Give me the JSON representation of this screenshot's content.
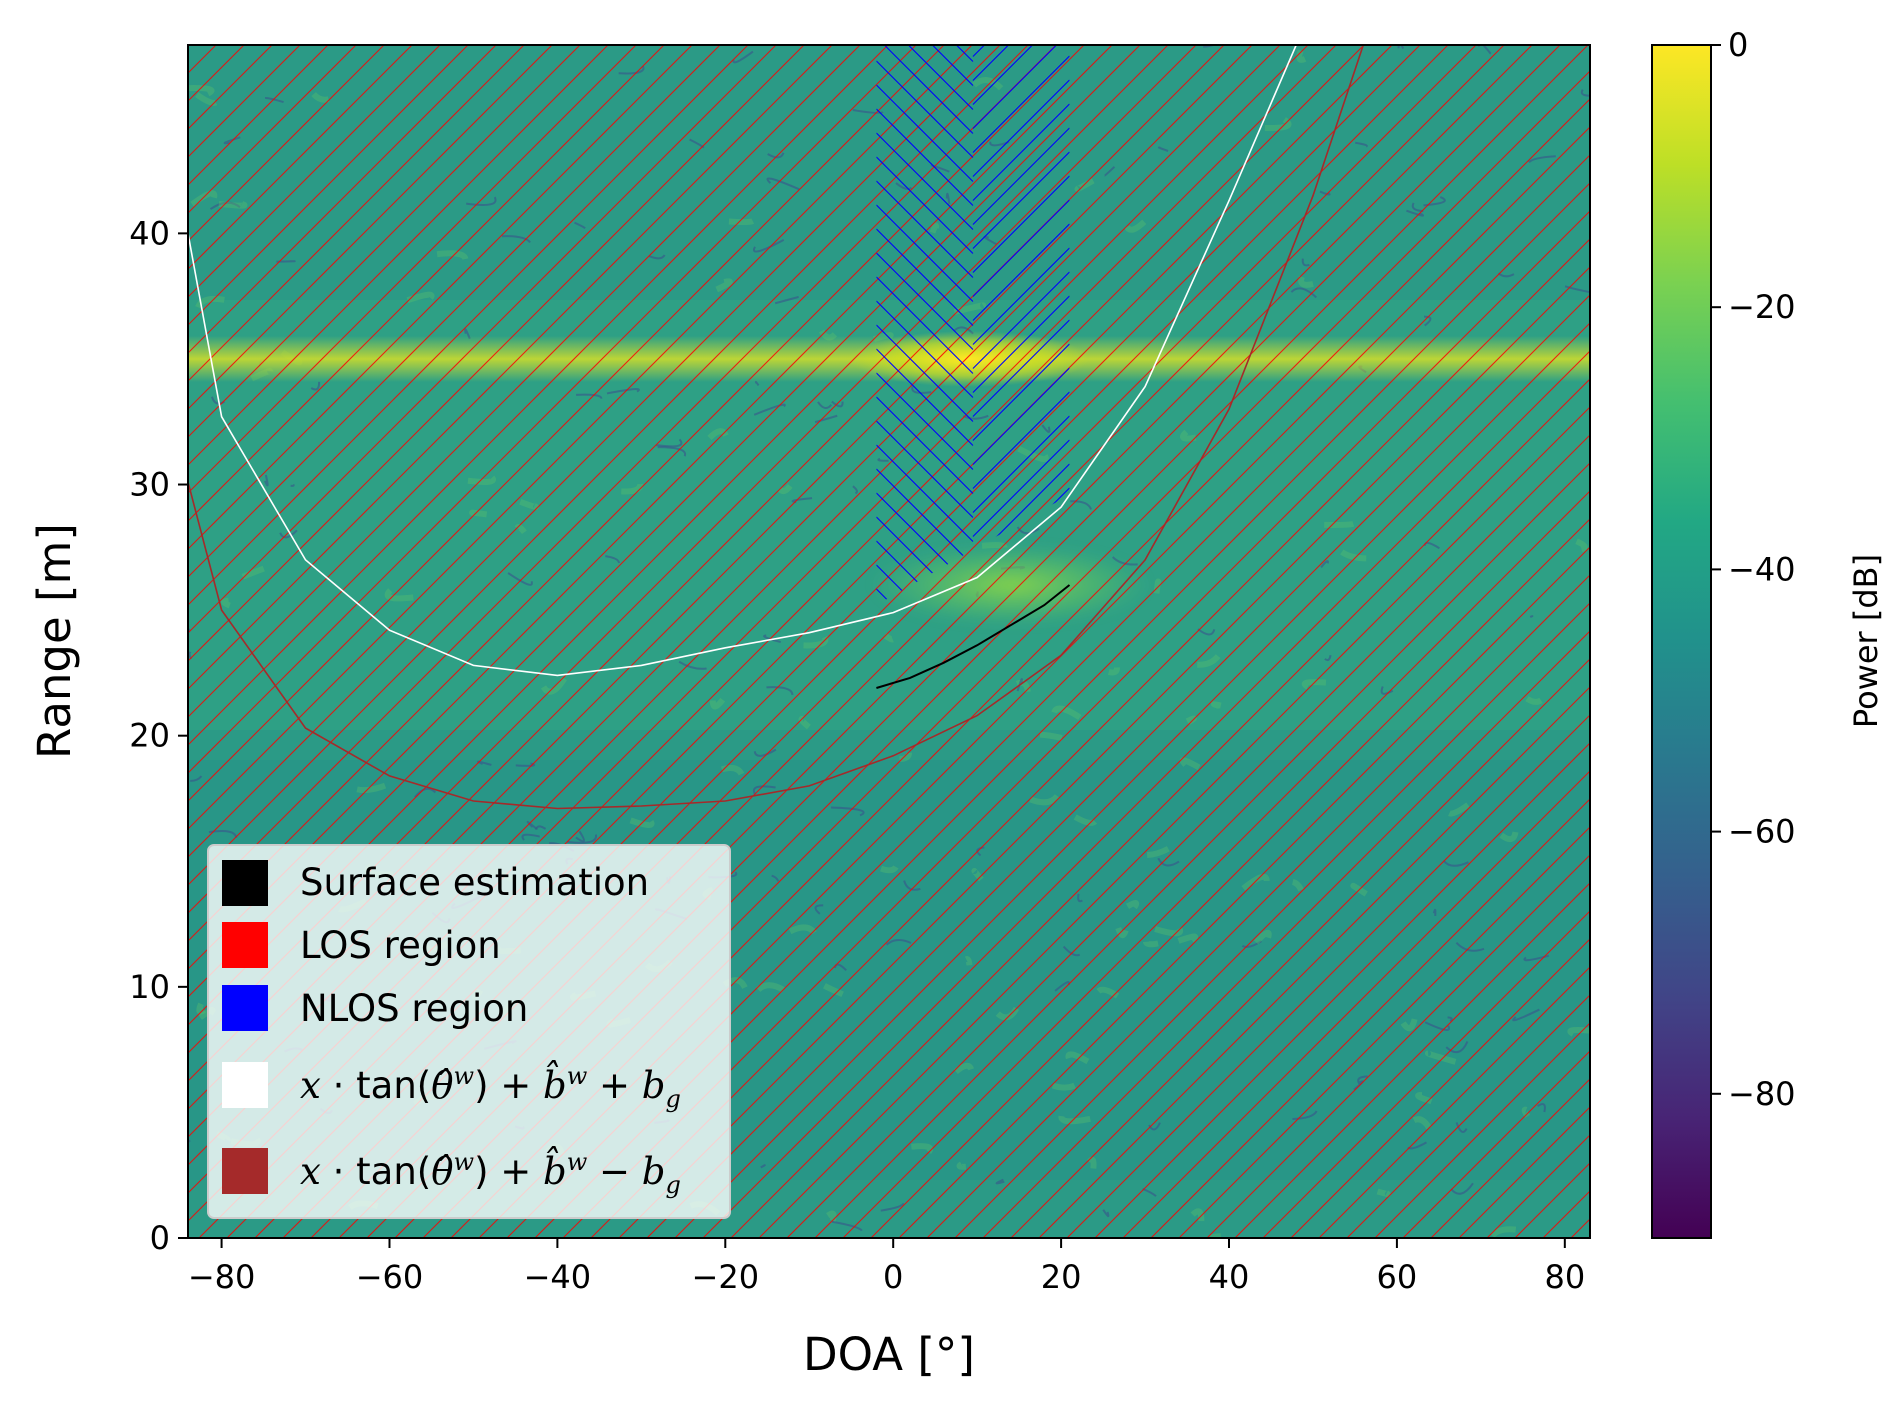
{
  "chart_data": {
    "type": "heatmap",
    "xlabel": "DOA [°]",
    "ylabel": "Range [m]",
    "xlim": [
      -84,
      83
    ],
    "ylim": [
      0,
      47.5
    ],
    "xticks": [
      -80,
      -60,
      -40,
      -20,
      0,
      20,
      40,
      60,
      80
    ],
    "xtick_labels": [
      "−80",
      "−60",
      "−40",
      "−20",
      "0",
      "20",
      "40",
      "60",
      "80"
    ],
    "yticks": [
      0,
      10,
      20,
      30,
      40
    ],
    "ytick_labels": [
      "0",
      "10",
      "20",
      "30",
      "40"
    ],
    "colorbar": {
      "label": "Power [dB]",
      "range": [
        -91,
        0
      ],
      "colormap": "viridis",
      "ticks": [
        0,
        -20,
        -40,
        -60,
        -80
      ],
      "tick_labels": [
        "0",
        "−20",
        "−40",
        "−60",
        "−80"
      ]
    },
    "legend": {
      "placement": "lower-left",
      "entries": [
        {
          "key": "surface",
          "label": "Surface estimation",
          "color": "#000000"
        },
        {
          "key": "los",
          "label": "LOS region",
          "color": "#ff0000"
        },
        {
          "key": "nlos",
          "label": "NLOS region",
          "color": "#0000ff"
        },
        {
          "key": "upper",
          "label": "x·tan(θ̂ʷ) + b̂ʷ + b_g",
          "color": "#ffffff"
        },
        {
          "key": "lower",
          "label": "x·tan(θ̂ʷ) + b̂ʷ − b_g",
          "color": "#a52a2a"
        }
      ]
    },
    "regions": {
      "nlos_doa_range": [
        -2,
        21
      ],
      "los": "all DOA outside the NLOS band",
      "nlos_min_range_at_doa": [
        [
          -2,
          25.2
        ],
        [
          21,
          29.6
        ]
      ]
    },
    "power_features": [
      {
        "description": "strong horizontal return",
        "range_m": 35,
        "peak_doa": 9,
        "peak_db": -2
      },
      {
        "description": "secondary return",
        "range_m": 26,
        "doa_span": [
          -2,
          30
        ],
        "peak_db": -22
      }
    ],
    "series": [
      {
        "key": "surface",
        "x": [
          -2,
          2,
          6,
          10,
          14,
          18,
          21
        ],
        "y": [
          21.9,
          22.3,
          22.9,
          23.6,
          24.4,
          25.2,
          26.0
        ]
      },
      {
        "key": "upper",
        "x": [
          -84,
          -80,
          -70,
          -60,
          -50,
          -40,
          -30,
          -20,
          -10,
          0,
          10,
          20,
          30,
          40,
          48
        ],
        "y": [
          40,
          32.7,
          27.0,
          24.2,
          22.8,
          22.4,
          22.8,
          23.5,
          24.1,
          24.9,
          26.3,
          29.1,
          33.9,
          41.3,
          47.5
        ]
      },
      {
        "key": "lower",
        "x": [
          -84,
          -80,
          -70,
          -60,
          -50,
          -40,
          -30,
          -20,
          -10,
          0,
          10,
          20,
          30,
          40,
          50,
          56
        ],
        "y": [
          30.1,
          25.0,
          20.3,
          18.4,
          17.4,
          17.1,
          17.2,
          17.4,
          18.0,
          19.2,
          20.8,
          23.2,
          27.0,
          33.0,
          41.5,
          47.5
        ]
      }
    ]
  }
}
